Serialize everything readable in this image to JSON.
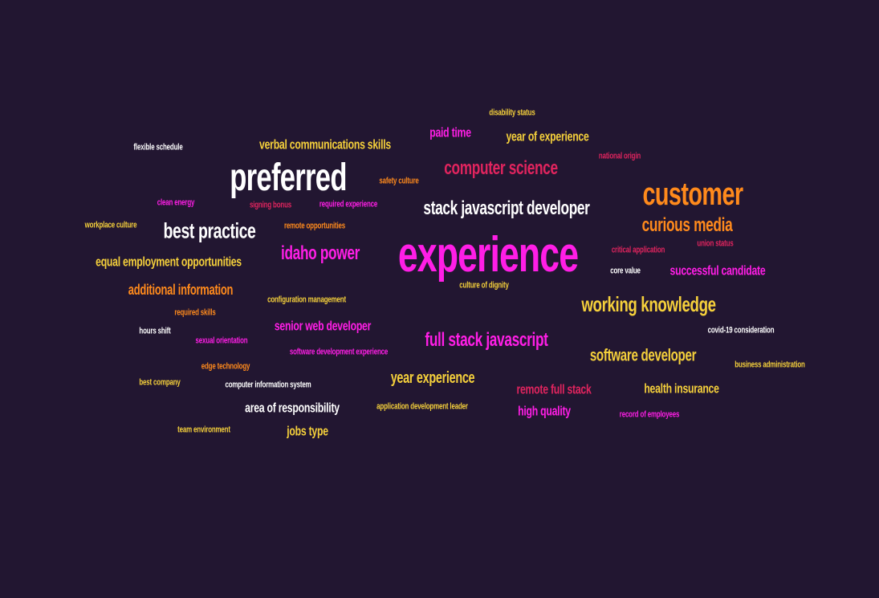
{
  "palette": {
    "background": "#221631",
    "white": "#ffffff",
    "yellow": "#f5d03b",
    "orange": "#ff8a1c",
    "magenta": "#ff1ee6",
    "pink": "#e0245e"
  },
  "words": [
    {
      "text": "experience",
      "color": "#ff1ee6"
    },
    {
      "text": "preferred",
      "color": "#ffffff"
    },
    {
      "text": "customer",
      "color": "#ff8a1c"
    },
    {
      "text": "stack javascript developer",
      "color": "#ffffff"
    },
    {
      "text": "computer science",
      "color": "#e0245e"
    },
    {
      "text": "curious media",
      "color": "#ff8a1c"
    },
    {
      "text": "best practice",
      "color": "#ffffff"
    },
    {
      "text": "idaho power",
      "color": "#ff1ee6"
    },
    {
      "text": "working knowledge",
      "color": "#f5d03b"
    },
    {
      "text": "full stack javascript",
      "color": "#ff1ee6"
    },
    {
      "text": "software developer",
      "color": "#f5d03b"
    },
    {
      "text": "year experience",
      "color": "#f5d03b"
    },
    {
      "text": "equal employment opportunities",
      "color": "#f5d03b"
    },
    {
      "text": "additional information",
      "color": "#ff8a1c"
    },
    {
      "text": "successful candidate",
      "color": "#ff1ee6"
    },
    {
      "text": "verbal communications skills",
      "color": "#f5d03b"
    },
    {
      "text": "year of experience",
      "color": "#f5d03b"
    },
    {
      "text": "paid time",
      "color": "#ff1ee6"
    },
    {
      "text": "senior web developer",
      "color": "#ff1ee6"
    },
    {
      "text": "health insurance",
      "color": "#f5d03b"
    },
    {
      "text": "remote full stack",
      "color": "#e0245e"
    },
    {
      "text": "high quality",
      "color": "#ff1ee6"
    },
    {
      "text": "area of responsibility",
      "color": "#ffffff"
    },
    {
      "text": "jobs type",
      "color": "#f5d03b"
    },
    {
      "text": "disability status",
      "color": "#f5d03b"
    },
    {
      "text": "flexible schedule",
      "color": "#ffffff"
    },
    {
      "text": "national origin",
      "color": "#e0245e"
    },
    {
      "text": "safety culture",
      "color": "#ff8a1c"
    },
    {
      "text": "clean energy",
      "color": "#ff1ee6"
    },
    {
      "text": "signing bonus",
      "color": "#e0245e"
    },
    {
      "text": "required experience",
      "color": "#ff1ee6"
    },
    {
      "text": "workplace culture",
      "color": "#f5d03b"
    },
    {
      "text": "remote opportunities",
      "color": "#ff8a1c"
    },
    {
      "text": "critical application",
      "color": "#e0245e"
    },
    {
      "text": "union status",
      "color": "#e0245e"
    },
    {
      "text": "core value",
      "color": "#ffffff"
    },
    {
      "text": "culture of dignity",
      "color": "#f5d03b"
    },
    {
      "text": "configuration management",
      "color": "#f5d03b"
    },
    {
      "text": "required skills",
      "color": "#ff8a1c"
    },
    {
      "text": "hours shift",
      "color": "#ffffff"
    },
    {
      "text": "sexual orientation",
      "color": "#ff1ee6"
    },
    {
      "text": "software development experience",
      "color": "#ff1ee6"
    },
    {
      "text": "covid-19 consideration",
      "color": "#ffffff"
    },
    {
      "text": "edge technology",
      "color": "#ff8a1c"
    },
    {
      "text": "business administration",
      "color": "#f5d03b"
    },
    {
      "text": "best company",
      "color": "#f5d03b"
    },
    {
      "text": "computer information system",
      "color": "#ffffff"
    },
    {
      "text": "application development leader",
      "color": "#f5d03b"
    },
    {
      "text": "record of employees",
      "color": "#ff1ee6"
    },
    {
      "text": "team environment",
      "color": "#f5d03b"
    }
  ]
}
